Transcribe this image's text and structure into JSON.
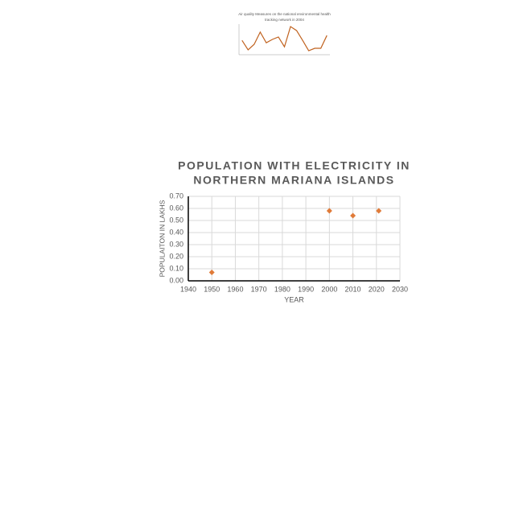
{
  "chart_data": [
    {
      "type": "line",
      "title": [
        "Air quality Measures on the national environmental health",
        "tracking network in 2004"
      ],
      "categories": [
        null,
        null,
        null,
        null,
        null,
        null,
        null,
        null,
        null,
        null,
        null,
        null,
        null,
        null,
        null
      ],
      "values": [
        4.7,
        1.6,
        3.4,
        7.4,
        3.9,
        5.0,
        5.8,
        2.6,
        9.2,
        7.9,
        4.7,
        1.3,
        2.1,
        2.1,
        6.3
      ],
      "color": "#c0621f",
      "ylim": [
        0,
        10
      ]
    },
    {
      "type": "scatter",
      "title": [
        "POPULATION WITH ELECTRICITY IN",
        "NORTHERN MARIANA ISLANDS"
      ],
      "x_label": "YEAR",
      "y_label": "POPULAITON IN LAKHS",
      "x": [
        1950,
        2000,
        2010,
        2021
      ],
      "values": [
        0.07,
        0.58,
        0.54,
        0.58
      ],
      "color": "#e07b39",
      "xlim": [
        1940,
        2030
      ],
      "xticks": [
        1940,
        1950,
        1960,
        1970,
        1980,
        1990,
        2000,
        2010,
        2020,
        2030
      ],
      "ylim": [
        0,
        0.7
      ],
      "yticks": [
        {
          "value": 0,
          "label": "0.00"
        },
        {
          "value": 0.1,
          "label": "0.10"
        },
        {
          "value": 0.2,
          "label": "0.20"
        },
        {
          "value": 0.3,
          "label": "0.30"
        },
        {
          "value": 0.4,
          "label": "0.40"
        },
        {
          "value": 0.5,
          "label": "0.50"
        },
        {
          "value": 0.6,
          "label": "0.60"
        },
        {
          "value": 0.7,
          "label": "0.70"
        }
      ],
      "grid": true
    }
  ]
}
